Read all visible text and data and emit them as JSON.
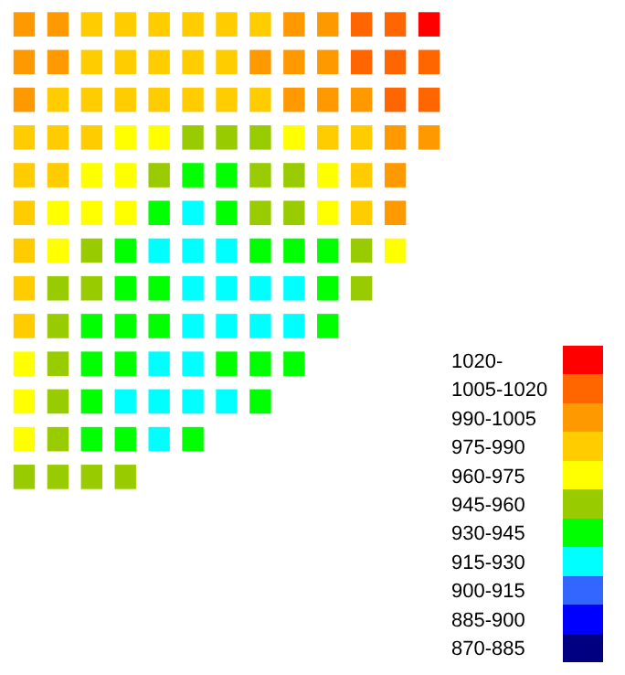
{
  "chart_data": {
    "type": "heatmap",
    "categories": [
      null,
      null,
      null,
      null,
      null,
      null,
      null,
      null,
      null,
      null,
      null,
      null,
      null
    ],
    "y_categories": [
      null,
      null,
      null,
      null,
      null,
      null,
      null,
      null,
      null,
      null,
      null,
      null,
      null
    ],
    "cells": [
      [
        990,
        990,
        975,
        975,
        975,
        975,
        975,
        975,
        990,
        990,
        1005,
        1005,
        1020
      ],
      [
        990,
        990,
        975,
        975,
        975,
        975,
        975,
        990,
        990,
        990,
        1005,
        1005,
        1005
      ],
      [
        990,
        975,
        975,
        975,
        975,
        975,
        975,
        975,
        990,
        990,
        990,
        1005,
        1005
      ],
      [
        975,
        975,
        975,
        960,
        960,
        945,
        945,
        945,
        960,
        975,
        975,
        990,
        990
      ],
      [
        975,
        975,
        960,
        960,
        945,
        930,
        930,
        945,
        945,
        960,
        975,
        990,
        null
      ],
      [
        975,
        960,
        960,
        960,
        930,
        915,
        930,
        945,
        945,
        960,
        975,
        990,
        null
      ],
      [
        975,
        960,
        945,
        930,
        915,
        915,
        915,
        930,
        930,
        930,
        945,
        960,
        null
      ],
      [
        975,
        945,
        945,
        930,
        930,
        915,
        915,
        915,
        915,
        930,
        945,
        null,
        null
      ],
      [
        975,
        945,
        930,
        930,
        930,
        915,
        915,
        915,
        915,
        930,
        null,
        null,
        null
      ],
      [
        960,
        945,
        930,
        930,
        915,
        915,
        930,
        930,
        930,
        null,
        null,
        null,
        null
      ],
      [
        960,
        945,
        930,
        915,
        915,
        915,
        915,
        930,
        null,
        null,
        null,
        null,
        null
      ],
      [
        960,
        945,
        930,
        930,
        915,
        930,
        null,
        null,
        null,
        null,
        null,
        null,
        null
      ],
      [
        945,
        945,
        945,
        945,
        null,
        null,
        null,
        null,
        null,
        null,
        null,
        null,
        null
      ]
    ],
    "colors": [
      "#000080",
      "#0000ff",
      "#3366ff",
      "#00ffff",
      "#00ff00",
      "#99cc00",
      "#ffff00",
      "#ffcc00",
      "#ff9900",
      "#ff6600",
      "#ff0000"
    ],
    "clim": [
      862.5,
      1027.5
    ],
    "cticks": [
      {
        "value": 870,
        "label": "870-885"
      },
      {
        "value": 885,
        "label": "885-900"
      },
      {
        "value": 900,
        "label": "900-915"
      },
      {
        "value": 915,
        "label": "915-930"
      },
      {
        "value": 930,
        "label": "930-945"
      },
      {
        "value": 945,
        "label": "945-960"
      },
      {
        "value": 960,
        "label": "960-975"
      },
      {
        "value": 975,
        "label": "975-990"
      },
      {
        "value": 990,
        "label": "990-1005"
      },
      {
        "value": 1005,
        "label": "1005-1020"
      },
      {
        "value": 1020,
        "label": "1020-"
      }
    ]
  }
}
